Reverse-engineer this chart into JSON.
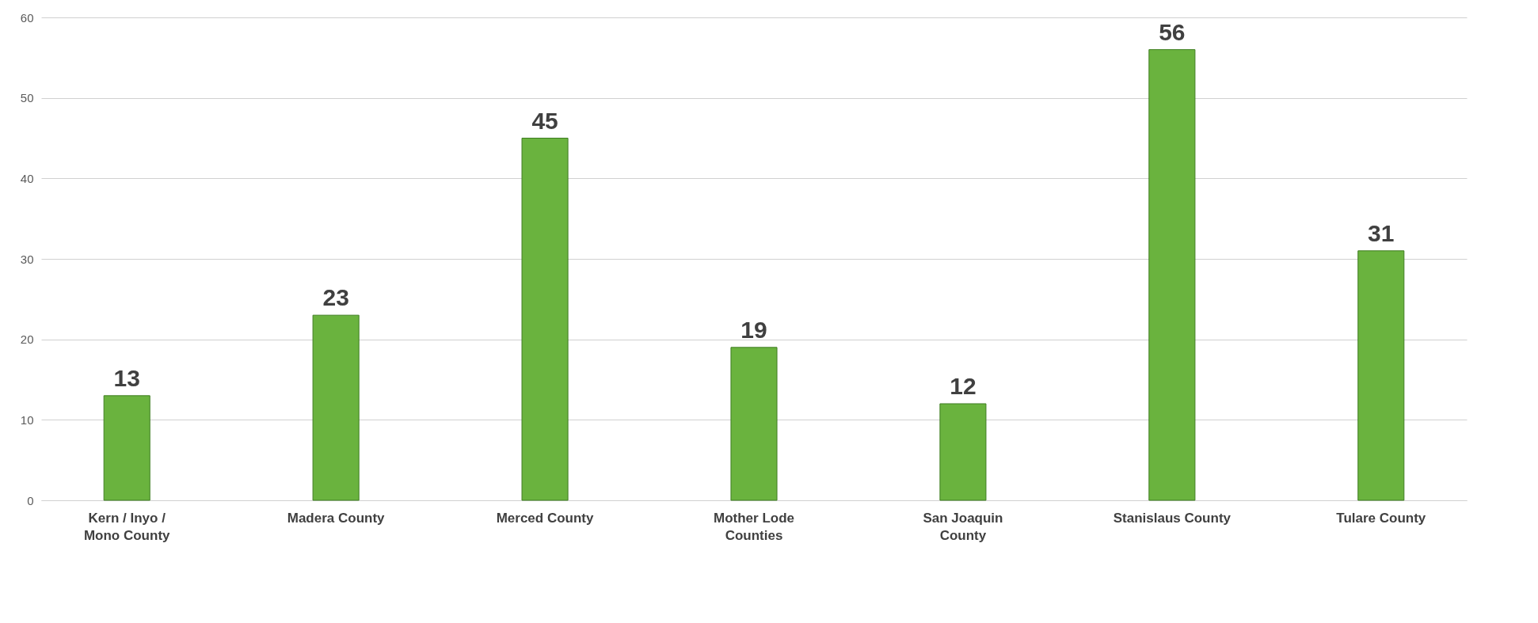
{
  "chart_data": {
    "type": "bar",
    "categories": [
      "Kern / Inyo / Mono County",
      "Madera County",
      "Merced County",
      "Mother Lode Counties",
      "San Joaquin County",
      "Stanislaus County",
      "Tulare County"
    ],
    "values": [
      13,
      23,
      45,
      19,
      12,
      56,
      31
    ],
    "color": "#6ab33e",
    "ylim": [
      0,
      60
    ],
    "yticks": [
      0,
      10,
      20,
      30,
      40,
      50,
      60
    ],
    "grid": "y",
    "data_labels": true
  }
}
